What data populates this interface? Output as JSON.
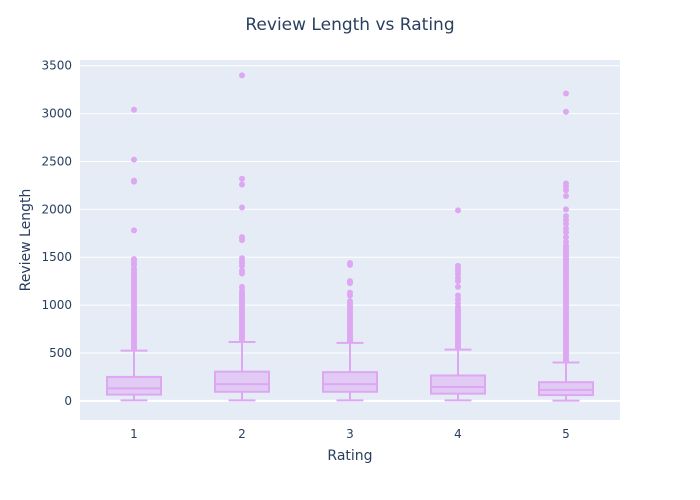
{
  "chart_data": {
    "type": "box",
    "title": "Review Length vs Rating",
    "xlabel": "Rating",
    "ylabel": "Review Length",
    "categories": [
      "1",
      "2",
      "3",
      "4",
      "5"
    ],
    "ylim": [
      -200,
      3560
    ],
    "yticks": [
      0,
      500,
      1000,
      1500,
      2000,
      2500,
      3000,
      3500
    ],
    "grid": true,
    "color": "#dda7f1",
    "box_fill": "rgba(221,167,241,0.5)",
    "plot_bg": "#e5ecf6",
    "boxes": [
      {
        "category": "1",
        "lowerfence": 5,
        "q1": 65,
        "median": 130,
        "q3": 250,
        "upperfence": 525,
        "outliers": [
          3040,
          2520,
          2300,
          2290,
          1780,
          1480,
          1470,
          1440,
          1420,
          1380,
          1360,
          1330,
          1310,
          1290,
          1270,
          1250,
          1230,
          1200,
          1180,
          1160,
          1140,
          1120,
          1100,
          1080,
          1060,
          1040,
          1020,
          1000,
          980,
          960,
          940,
          920,
          900,
          880,
          860,
          840,
          820,
          800,
          780,
          760,
          740,
          720,
          700,
          680,
          660,
          640,
          620,
          600,
          580,
          560,
          545
        ]
      },
      {
        "category": "2",
        "lowerfence": 5,
        "q1": 95,
        "median": 175,
        "q3": 305,
        "upperfence": 615,
        "outliers": [
          3400,
          2320,
          2260,
          2020,
          1710,
          1680,
          1490,
          1460,
          1440,
          1410,
          1360,
          1330,
          1190,
          1150,
          1120,
          1100,
          1080,
          1060,
          1040,
          1020,
          1000,
          980,
          960,
          940,
          920,
          900,
          880,
          860,
          840,
          820,
          800,
          780,
          760,
          740,
          720,
          700,
          680,
          660,
          640
        ]
      },
      {
        "category": "3",
        "lowerfence": 5,
        "q1": 95,
        "median": 175,
        "q3": 300,
        "upperfence": 605,
        "outliers": [
          1440,
          1420,
          1250,
          1230,
          1130,
          1100,
          1040,
          1020,
          1000,
          980,
          960,
          940,
          920,
          900,
          880,
          860,
          840,
          820,
          800,
          780,
          760,
          740,
          720,
          700,
          680,
          660,
          640,
          625
        ]
      },
      {
        "category": "4",
        "lowerfence": 5,
        "q1": 75,
        "median": 145,
        "q3": 265,
        "upperfence": 535,
        "outliers": [
          1990,
          1410,
          1380,
          1350,
          1320,
          1280,
          1250,
          1190,
          1100,
          1060,
          1020,
          980,
          960,
          940,
          920,
          900,
          880,
          860,
          840,
          820,
          800,
          780,
          760,
          740,
          720,
          700,
          680,
          660,
          640,
          620,
          600,
          580,
          560
        ]
      },
      {
        "category": "5",
        "lowerfence": 2,
        "q1": 60,
        "median": 115,
        "q3": 195,
        "upperfence": 400,
        "outliers": [
          3210,
          3020,
          2270,
          2240,
          2200,
          2140,
          2000,
          1930,
          1890,
          1850,
          1800,
          1760,
          1710,
          1660,
          1620,
          1600,
          1580,
          1560,
          1540,
          1520,
          1500,
          1480,
          1460,
          1440,
          1420,
          1400,
          1380,
          1360,
          1340,
          1320,
          1300,
          1280,
          1260,
          1240,
          1220,
          1200,
          1180,
          1160,
          1140,
          1120,
          1100,
          1080,
          1060,
          1040,
          1020,
          1000,
          980,
          960,
          940,
          920,
          900,
          880,
          860,
          840,
          820,
          800,
          780,
          760,
          740,
          720,
          700,
          680,
          660,
          640,
          620,
          600,
          580,
          560,
          540,
          520,
          500,
          480,
          460,
          440,
          420
        ]
      }
    ]
  }
}
